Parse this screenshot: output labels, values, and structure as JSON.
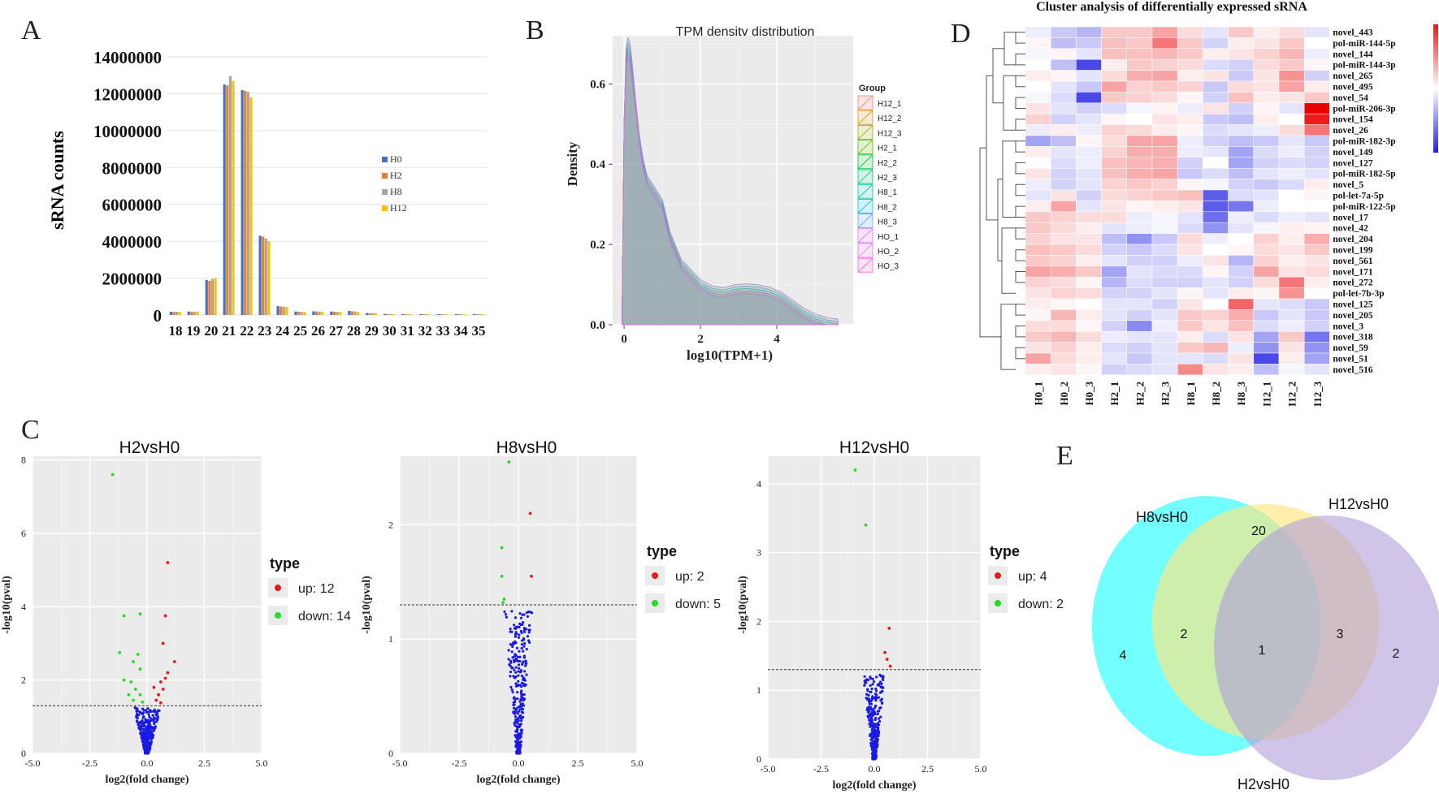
{
  "colors": {
    "h0": "#4472c4",
    "h2": "#ed7d31",
    "h8": "#a5a5a5",
    "h12": "#ffc000",
    "panel_bg": "#ebebeb",
    "grid": "#ffffff",
    "up": "#e41a1c",
    "down": "#22dd22",
    "ns": "#1a1ae6",
    "venn_h8": "#00ffff",
    "venn_h12": "#ffe680",
    "venn_h2": "#b19cd9"
  },
  "panel_labels": {
    "a": "A",
    "b": "B",
    "c": "C",
    "d": "D",
    "e": "E"
  },
  "chart_data": [
    {
      "id": "A",
      "type": "bar",
      "ylabel": "sRNA counts",
      "ylim": [
        0,
        14000000
      ],
      "yticks": [
        "14000000",
        "12000000",
        "10000000",
        "8000000",
        "6000000",
        "4000000",
        "2000000",
        "0"
      ],
      "ytick_values": [
        14000000,
        12000000,
        10000000,
        8000000,
        6000000,
        4000000,
        2000000,
        0
      ],
      "categories": [
        "18",
        "19",
        "20",
        "21",
        "22",
        "23",
        "24",
        "25",
        "26",
        "27",
        "28",
        "29",
        "30",
        "31",
        "32",
        "33",
        "34",
        "35"
      ],
      "series": [
        {
          "name": "H0",
          "values": [
            180000,
            190000,
            1900000,
            12500000,
            12200000,
            4300000,
            480000,
            190000,
            200000,
            190000,
            220000,
            110000,
            60000,
            50000,
            50000,
            50000,
            50000,
            50000
          ]
        },
        {
          "name": "H2",
          "values": [
            170000,
            180000,
            1850000,
            12450000,
            12150000,
            4250000,
            460000,
            180000,
            190000,
            180000,
            200000,
            100000,
            55000,
            45000,
            45000,
            45000,
            45000,
            45000
          ]
        },
        {
          "name": "H8",
          "values": [
            175000,
            185000,
            1950000,
            12950000,
            12100000,
            4150000,
            450000,
            170000,
            185000,
            170000,
            190000,
            95000,
            50000,
            40000,
            40000,
            40000,
            40000,
            40000
          ]
        },
        {
          "name": "H12",
          "values": [
            172000,
            182000,
            2000000,
            12700000,
            11800000,
            4000000,
            440000,
            165000,
            180000,
            165000,
            180000,
            90000,
            48000,
            38000,
            38000,
            38000,
            38000,
            38000
          ]
        }
      ],
      "legend": [
        "H0",
        "H2",
        "H8",
        "H12"
      ]
    },
    {
      "id": "B",
      "type": "area",
      "title": "TPM density distribution",
      "xlabel": "log10(TPM+1)",
      "ylabel": "Density",
      "xticks": [
        "0",
        "2",
        "4"
      ],
      "xtick_values": [
        0,
        2,
        4
      ],
      "yticks": [
        "0.0",
        "0.2",
        "0.4",
        "0.6"
      ],
      "ytick_values": [
        0,
        0.2,
        0.4,
        0.6
      ],
      "xlim": [
        -0.3,
        6
      ],
      "ylim": [
        0,
        0.72
      ],
      "legend_title": "Group",
      "groups": [
        {
          "name": "H12_1",
          "color": "#f8766d"
        },
        {
          "name": "H12_2",
          "color": "#d39200"
        },
        {
          "name": "H12_3",
          "color": "#93aa00"
        },
        {
          "name": "H2_1",
          "color": "#5eb300"
        },
        {
          "name": "H2_2",
          "color": "#00ba38"
        },
        {
          "name": "H2_3",
          "color": "#00bf74"
        },
        {
          "name": "H8_1",
          "color": "#00c19f"
        },
        {
          "name": "H8_2",
          "color": "#00b9e3"
        },
        {
          "name": "H8_3",
          "color": "#619cff"
        },
        {
          "name": "HO_1",
          "color": "#db72fb"
        },
        {
          "name": "HO_2",
          "color": "#d575fe"
        },
        {
          "name": "HO_3",
          "color": "#ff61c3"
        }
      ],
      "curve_x": [
        -0.05,
        0,
        0.05,
        0.1,
        0.15,
        0.2,
        0.3,
        0.4,
        0.5,
        0.6,
        0.8,
        1.0,
        1.2,
        1.5,
        1.8,
        2.0,
        2.3,
        2.6,
        2.9,
        3.2,
        3.5,
        3.8,
        4.1,
        4.4,
        4.7,
        5.0,
        5.3,
        5.6
      ],
      "curve_y": [
        0.04,
        0.5,
        0.66,
        0.69,
        0.68,
        0.64,
        0.55,
        0.46,
        0.4,
        0.36,
        0.33,
        0.3,
        0.22,
        0.15,
        0.12,
        0.1,
        0.085,
        0.08,
        0.088,
        0.09,
        0.088,
        0.082,
        0.07,
        0.05,
        0.03,
        0.015,
        0.006,
        0.002
      ]
    },
    {
      "id": "C1",
      "type": "scatter",
      "title": "H2vsH0",
      "xlabel": "log2(fold change)",
      "ylabel": "-log10(pval)",
      "xticks": [
        "-5.0",
        "-2.5",
        "0.0",
        "2.5",
        "5.0"
      ],
      "xtick_values": [
        -5,
        -2.5,
        0,
        2.5,
        5
      ],
      "yticks": [
        "0",
        "2",
        "4",
        "6",
        "8"
      ],
      "ytick_values": [
        0,
        2,
        4,
        6,
        8
      ],
      "xlim": [
        -5,
        5
      ],
      "ylim": [
        0,
        8.1
      ],
      "threshold": 1.3,
      "legend_title": "type",
      "up_label": "up: 12",
      "down_label": "down: 14",
      "up": [
        [
          0.9,
          5.2
        ],
        [
          0.8,
          3.75
        ],
        [
          0.7,
          3.0
        ],
        [
          1.2,
          2.5
        ],
        [
          0.9,
          2.2
        ],
        [
          0.8,
          2.05
        ],
        [
          0.6,
          1.95
        ],
        [
          0.3,
          1.8
        ],
        [
          0.7,
          1.75
        ],
        [
          0.5,
          1.6
        ],
        [
          0.4,
          1.45
        ],
        [
          0.6,
          1.38
        ]
      ],
      "down": [
        [
          -1.5,
          7.6
        ],
        [
          -1.0,
          3.75
        ],
        [
          -0.3,
          3.8
        ],
        [
          -1.2,
          2.75
        ],
        [
          -0.4,
          2.7
        ],
        [
          -0.6,
          2.5
        ],
        [
          -0.3,
          2.3
        ],
        [
          -1.0,
          2.0
        ],
        [
          -0.7,
          1.95
        ],
        [
          -0.5,
          1.75
        ],
        [
          -0.8,
          1.6
        ],
        [
          -0.3,
          1.6
        ],
        [
          -0.6,
          1.45
        ],
        [
          -0.2,
          1.4
        ]
      ],
      "ns_count": 320,
      "ns_spread": 0.85,
      "ns_max": 1.25
    },
    {
      "id": "C2",
      "type": "scatter",
      "title": "H8vsH0",
      "xlabel": "log2(fold change)",
      "ylabel": "-log10(pval)",
      "xticks": [
        "-5.0",
        "-2.5",
        "0.0",
        "2.5",
        "5.0"
      ],
      "xtick_values": [
        -5,
        -2.5,
        0,
        2.5,
        5
      ],
      "yticks": [
        "0",
        "1",
        "2"
      ],
      "ytick_values": [
        0,
        1,
        2
      ],
      "xlim": [
        -5,
        5
      ],
      "ylim": [
        0,
        2.6
      ],
      "threshold": 1.3,
      "legend_title": "type",
      "up_label": "up: 2",
      "down_label": "down: 5",
      "up": [
        [
          0.5,
          2.1
        ],
        [
          0.55,
          1.55
        ]
      ],
      "down": [
        [
          -0.4,
          2.55
        ],
        [
          -0.7,
          1.8
        ],
        [
          -0.7,
          1.55
        ],
        [
          -0.6,
          1.35
        ],
        [
          -0.65,
          1.32
        ]
      ],
      "ns_count": 320,
      "ns_spread": 0.85,
      "ns_max": 1.25
    },
    {
      "id": "C3",
      "type": "scatter",
      "title": "H12vsH0",
      "xlabel": "log2(fold change)",
      "ylabel": "-log10(pval)",
      "xticks": [
        "-5.0",
        "-2.5",
        "0.0",
        "2.5",
        "5.0"
      ],
      "xtick_values": [
        -5,
        -2.5,
        0,
        2.5,
        5
      ],
      "yticks": [
        "0",
        "1",
        "2",
        "3",
        "4"
      ],
      "ytick_values": [
        0,
        1,
        2,
        3,
        4
      ],
      "xlim": [
        -5,
        5
      ],
      "ylim": [
        0,
        4.4
      ],
      "threshold": 1.3,
      "legend_title": "type",
      "up_label": "up: 4",
      "down_label": "down: 2",
      "up": [
        [
          0.7,
          1.9
        ],
        [
          0.5,
          1.55
        ],
        [
          0.6,
          1.45
        ],
        [
          0.75,
          1.35
        ]
      ],
      "down": [
        [
          -0.9,
          4.2
        ],
        [
          -0.4,
          3.4
        ]
      ],
      "ns_count": 320,
      "ns_spread": 0.75,
      "ns_max": 1.25
    },
    {
      "id": "D",
      "type": "heatmap",
      "title": "Cluster analysis of differentially expressed sRNA",
      "rows": [
        "novel_443",
        "pol-miR-144-5p",
        "novel_144",
        "pol-miR-144-3p",
        "novel_265",
        "novel_495",
        "novel_54",
        "pol-miR-206-3p",
        "novel_154",
        "novel_26",
        "pol-miR-182-3p",
        "novel_149",
        "novel_127",
        "pol-miR-182-5p",
        "novel_5",
        "pol-let-7a-5p",
        "pol-miR-122-5p",
        "novel_17",
        "novel_42",
        "novel_204",
        "novel_199",
        "novel_561",
        "novel_171",
        "novel_272",
        "pol-let-7b-3p",
        "novel_125",
        "novel_205",
        "novel_3",
        "novel_318",
        "novel_59",
        "novel_51",
        "novel_516"
      ],
      "cols": [
        "H0_1",
        "H0_2",
        "H0_3",
        "H2_1",
        "H2_2",
        "H2_3",
        "H8_1",
        "H8_2",
        "H8_3",
        "I12_1",
        "I12_2",
        "I12_3"
      ],
      "values": [
        [
          -0.2,
          -0.6,
          -0.8,
          0.6,
          0.6,
          1.0,
          0.4,
          -0.3,
          0.6,
          0.2,
          0.4,
          -0.3
        ],
        [
          0.1,
          -0.7,
          -0.6,
          0.7,
          0.6,
          1.5,
          0.6,
          -0.5,
          0.2,
          0.3,
          0.6,
          0.0
        ],
        [
          -0.1,
          0.1,
          -0.3,
          0.7,
          0.7,
          0.8,
          0.6,
          0.2,
          0.3,
          0.5,
          0.8,
          -0.2
        ],
        [
          0.0,
          -0.7,
          -2.0,
          0.2,
          0.6,
          0.5,
          0.4,
          -0.4,
          -0.5,
          0.4,
          0.6,
          0.1
        ],
        [
          0.2,
          0.1,
          -0.3,
          0.4,
          0.9,
          1.0,
          0.2,
          0.3,
          -0.6,
          0.3,
          1.2,
          -0.5
        ],
        [
          0.0,
          -0.3,
          -0.6,
          1.0,
          0.5,
          0.6,
          0.5,
          -0.6,
          0.4,
          0.3,
          1.0,
          0.2
        ],
        [
          -0.1,
          -0.4,
          -2.0,
          0.6,
          0.5,
          0.4,
          0.1,
          -0.5,
          0.7,
          0.2,
          0.3,
          0.6
        ],
        [
          0.3,
          -0.3,
          -0.5,
          -0.4,
          -0.1,
          0.1,
          -0.2,
          0.3,
          -0.5,
          0.1,
          -0.3,
          2.8
        ],
        [
          0.5,
          -0.5,
          -0.3,
          0.1,
          0.0,
          0.3,
          0.2,
          -0.6,
          -0.7,
          0.2,
          0.0,
          2.5
        ],
        [
          -0.2,
          0.2,
          -0.2,
          0.5,
          0.4,
          0.2,
          0.1,
          -0.4,
          -0.3,
          -0.2,
          0.4,
          1.5
        ],
        [
          -1.0,
          -0.7,
          0.1,
          0.4,
          1.0,
          1.0,
          -0.2,
          -0.5,
          -0.7,
          -0.6,
          -0.3,
          -0.6
        ],
        [
          0.2,
          -0.3,
          -0.2,
          0.5,
          0.9,
          0.9,
          -0.2,
          -0.3,
          -1.0,
          -0.4,
          -0.2,
          -0.5
        ],
        [
          0.0,
          -0.4,
          -0.2,
          0.7,
          0.8,
          0.9,
          -0.5,
          0.0,
          -1.0,
          -0.5,
          -0.4,
          -0.5
        ],
        [
          0.3,
          -0.5,
          -0.3,
          0.7,
          0.9,
          1.0,
          -0.6,
          -0.4,
          -0.7,
          -0.3,
          -0.2,
          -0.3
        ],
        [
          -0.2,
          -0.5,
          -0.3,
          0.5,
          0.6,
          0.5,
          0.1,
          -0.1,
          -0.5,
          -0.6,
          -0.4,
          0.2
        ],
        [
          -0.3,
          0.3,
          -0.5,
          0.4,
          0.5,
          0.6,
          0.7,
          -1.8,
          -0.4,
          -0.3,
          0.0,
          0.1
        ],
        [
          0.2,
          1.0,
          -0.3,
          0.3,
          0.1,
          0.2,
          0.3,
          -1.8,
          -1.5,
          -0.2,
          0.0,
          0.0
        ],
        [
          0.6,
          0.5,
          0.4,
          0.4,
          -0.2,
          -0.1,
          -0.3,
          -1.6,
          -0.2,
          -0.4,
          -0.2,
          -0.3
        ],
        [
          0.6,
          0.4,
          0.2,
          -0.3,
          -0.2,
          -0.1,
          -0.4,
          -1.2,
          -0.3,
          -0.1,
          0.2,
          0.1
        ],
        [
          0.5,
          0.3,
          0.3,
          -0.7,
          -1.2,
          -0.6,
          0.4,
          -0.2,
          0.0,
          0.5,
          0.2,
          0.9
        ],
        [
          0.7,
          0.6,
          0.4,
          -0.5,
          -0.6,
          -0.4,
          0.3,
          0.0,
          0.1,
          0.4,
          0.3,
          0.6
        ],
        [
          0.6,
          0.5,
          0.2,
          -0.3,
          -0.5,
          -0.5,
          -0.2,
          0.3,
          -0.8,
          0.5,
          0.2,
          0.3
        ],
        [
          1.0,
          0.9,
          0.6,
          -1.0,
          -0.3,
          -0.4,
          -0.4,
          0.1,
          -0.5,
          1.0,
          0.3,
          0.4
        ],
        [
          0.5,
          0.4,
          0.1,
          -0.8,
          -0.4,
          -0.5,
          -0.5,
          -0.3,
          -0.5,
          0.4,
          1.5,
          0.2
        ],
        [
          0.3,
          0.5,
          0.4,
          -0.5,
          -0.5,
          -0.3,
          0.1,
          -0.3,
          0.2,
          0.1,
          1.2,
          0.0
        ],
        [
          0.2,
          0.1,
          0.0,
          -0.3,
          -0.3,
          -0.5,
          0.3,
          0.0,
          1.7,
          -0.3,
          -0.4,
          -0.6
        ],
        [
          0.1,
          0.8,
          0.2,
          -0.3,
          -0.5,
          -0.3,
          0.6,
          0.5,
          0.9,
          -0.6,
          -0.3,
          -0.6
        ],
        [
          0.4,
          0.4,
          0.1,
          -0.5,
          -1.3,
          -0.2,
          0.6,
          0.3,
          0.7,
          -0.4,
          -0.2,
          -0.5
        ],
        [
          0.6,
          0.8,
          0.4,
          -0.2,
          -0.3,
          -0.3,
          0.2,
          -0.4,
          0.3,
          -1.0,
          0.6,
          -1.5
        ],
        [
          0.3,
          0.5,
          0.2,
          -0.4,
          -0.5,
          -0.3,
          0.6,
          0.8,
          -0.2,
          -1.2,
          0.3,
          -1.2
        ],
        [
          1.0,
          0.4,
          0.2,
          -0.3,
          -0.6,
          -0.3,
          -0.3,
          -0.4,
          0.3,
          -2.0,
          0.2,
          -1.0
        ],
        [
          0.2,
          0.3,
          0.1,
          -0.5,
          -0.4,
          -0.3,
          1.3,
          0.3,
          0.2,
          -0.7,
          -0.1,
          -0.3
        ]
      ]
    },
    {
      "id": "E",
      "type": "venn",
      "sets": [
        {
          "name": "H8vsH0",
          "only": "4"
        },
        {
          "name": "H12vsH0",
          "only": "20"
        },
        {
          "name": "H2vsH0",
          "only": "2"
        }
      ],
      "h8_h12": "2",
      "h12_h2": "3",
      "all": "1"
    }
  ]
}
